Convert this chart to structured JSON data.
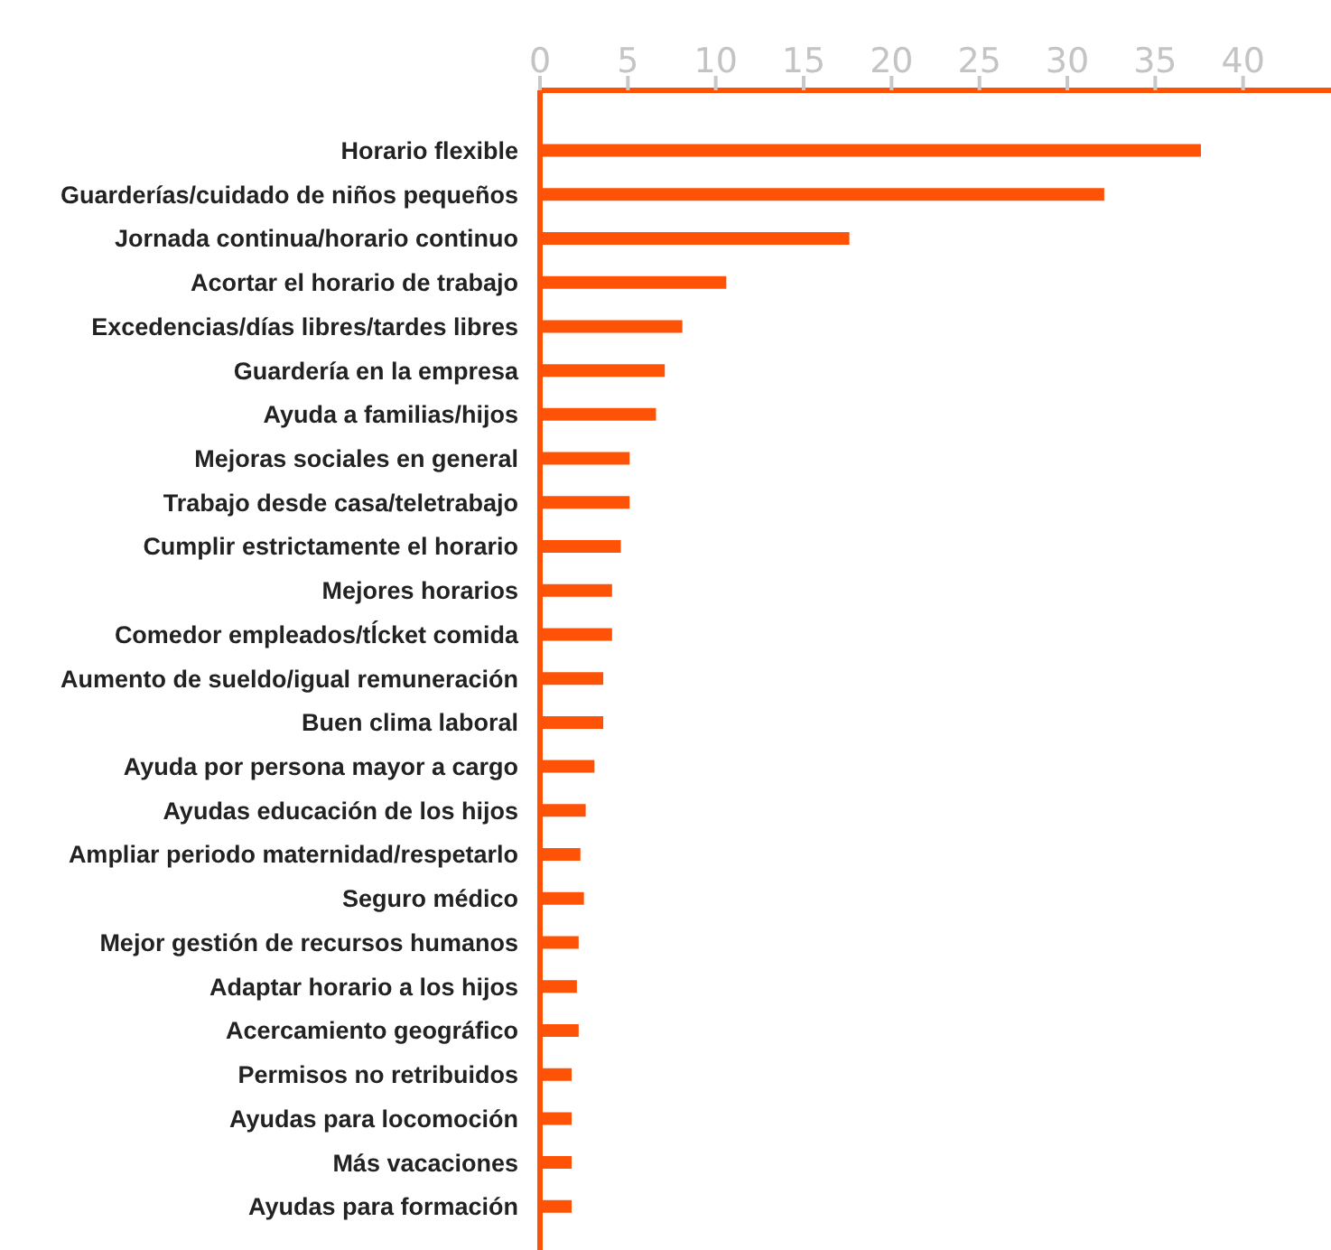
{
  "chart_data": {
    "type": "bar",
    "orientation": "horizontal",
    "categories": [
      "Horario flexible",
      "Guarderías/cuidado de niños pequeños",
      "Jornada continua/horario continuo",
      "Acortar el horario de trabajo",
      "Excedencias/días libres/tardes libres",
      "Guardería en la empresa",
      "Ayuda a familias/hijos",
      "Mejoras sociales en general",
      "Trabajo desde casa/teletrabajo",
      "Cumplir estrictamente el horario",
      "Mejores horarios",
      "Comedor empleados/tĺcket comida",
      "Aumento de sueldo/igual remuneración",
      "Buen clima laboral",
      "Ayuda por persona mayor a cargo",
      "Ayudas educación de los hijos",
      "Ampliar periodo maternidad/respetarlo",
      "Seguro médico",
      "Mejor gestión de recursos humanos",
      "Adaptar horario a los hijos",
      "Acercamiento geográfico",
      "Permisos no retribuidos",
      "Ayudas para locomoción",
      "Más vacaciones",
      "Ayudas para formación"
    ],
    "values": [
      37.6,
      32.1,
      17.6,
      10.6,
      8.1,
      7.1,
      6.6,
      5.1,
      5.1,
      4.6,
      4.1,
      4.1,
      3.6,
      3.6,
      3.1,
      2.6,
      2.3,
      2.5,
      2.2,
      2.1,
      2.2,
      1.8,
      1.8,
      1.8,
      1.8
    ],
    "color": "#fe5206",
    "xlim": [
      0,
      45
    ],
    "xticks": [
      0,
      5,
      10,
      15,
      20,
      25,
      30,
      35,
      40
    ]
  }
}
